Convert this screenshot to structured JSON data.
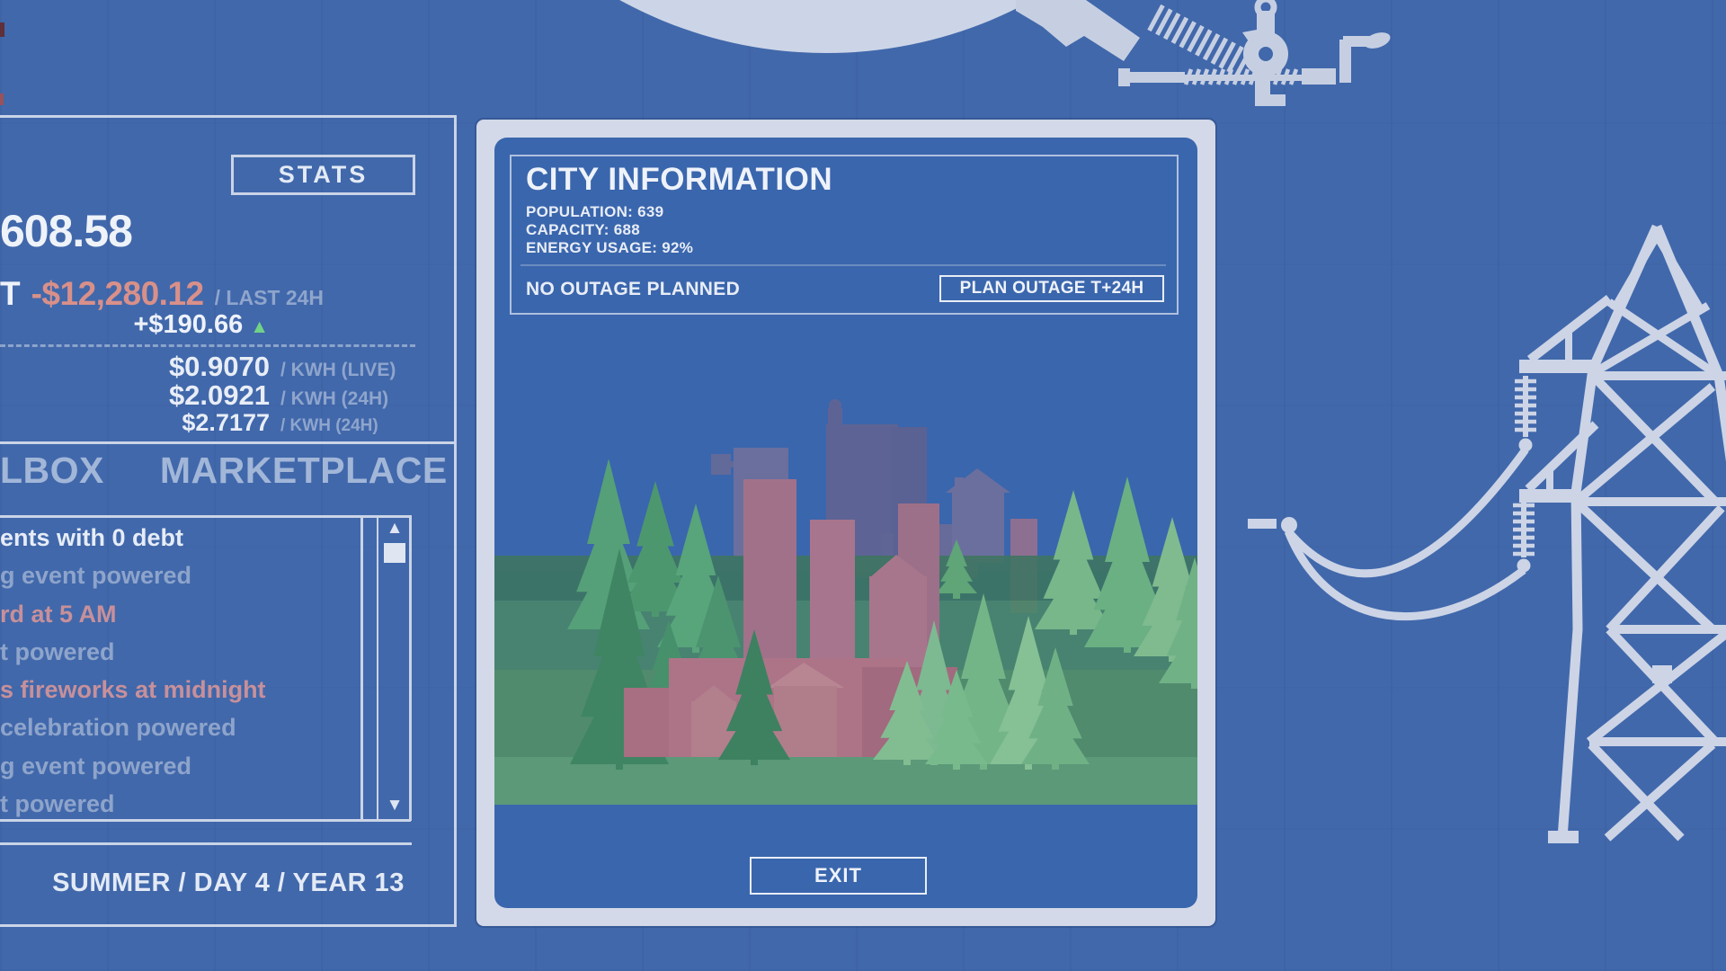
{
  "colors": {
    "background": "#4168ab",
    "panel_line": "#cad4e7",
    "text_bright": "#edf1f8",
    "text_muted": "#8fa5cc",
    "negative": "#d99089",
    "positive": "#72d287",
    "tab_text": "#a2b6d8",
    "modal_frame": "#d3d9e8",
    "modal_background": "#3a66ad",
    "art_light": "#ccd4e6"
  },
  "stats_panel": {
    "stats_button": "STATS",
    "balance_partial": "608.58",
    "debt_prefix_partial": "T",
    "debt_value": "-$12,280.12",
    "debt_period": "/ LAST 24H",
    "change_value": "+$190.66",
    "change_icon": "▲",
    "prices": [
      {
        "value": "$0.9070",
        "unit": "/ KWH (LIVE)"
      },
      {
        "value": "$2.0921",
        "unit": "/ KWH (24H)"
      },
      {
        "value": "$2.7177",
        "unit": "/ KWH (24H)"
      }
    ],
    "tabs": [
      {
        "label": "LBOX"
      },
      {
        "label": "MARKETPLACE"
      }
    ],
    "events": [
      {
        "text": "ents with 0 debt",
        "tone": "bright"
      },
      {
        "text": "g event powered",
        "tone": "muted"
      },
      {
        "text": "rd at 5 AM",
        "tone": "salmon"
      },
      {
        "text": "t powered",
        "tone": "muted"
      },
      {
        "text": "s fireworks at midnight",
        "tone": "salmon"
      },
      {
        "text": "celebration powered",
        "tone": "muted"
      },
      {
        "text": "g event powered",
        "tone": "muted"
      },
      {
        "text": "t powered",
        "tone": "muted"
      }
    ],
    "scrollbar": {
      "up_icon": "▲",
      "down_icon": "▼"
    },
    "date_line": "SUMMER / DAY 4 / YEAR 13"
  },
  "city_modal": {
    "title": "CITY INFORMATION",
    "population_line": "POPULATION: 639",
    "capacity_line": "CAPACITY: 688",
    "energy_line": "ENERGY USAGE: 92%",
    "outage_status": "NO OUTAGE PLANNED",
    "plan_outage_button": "PLAN OUTAGE T+24H",
    "exit_button": "EXIT"
  }
}
